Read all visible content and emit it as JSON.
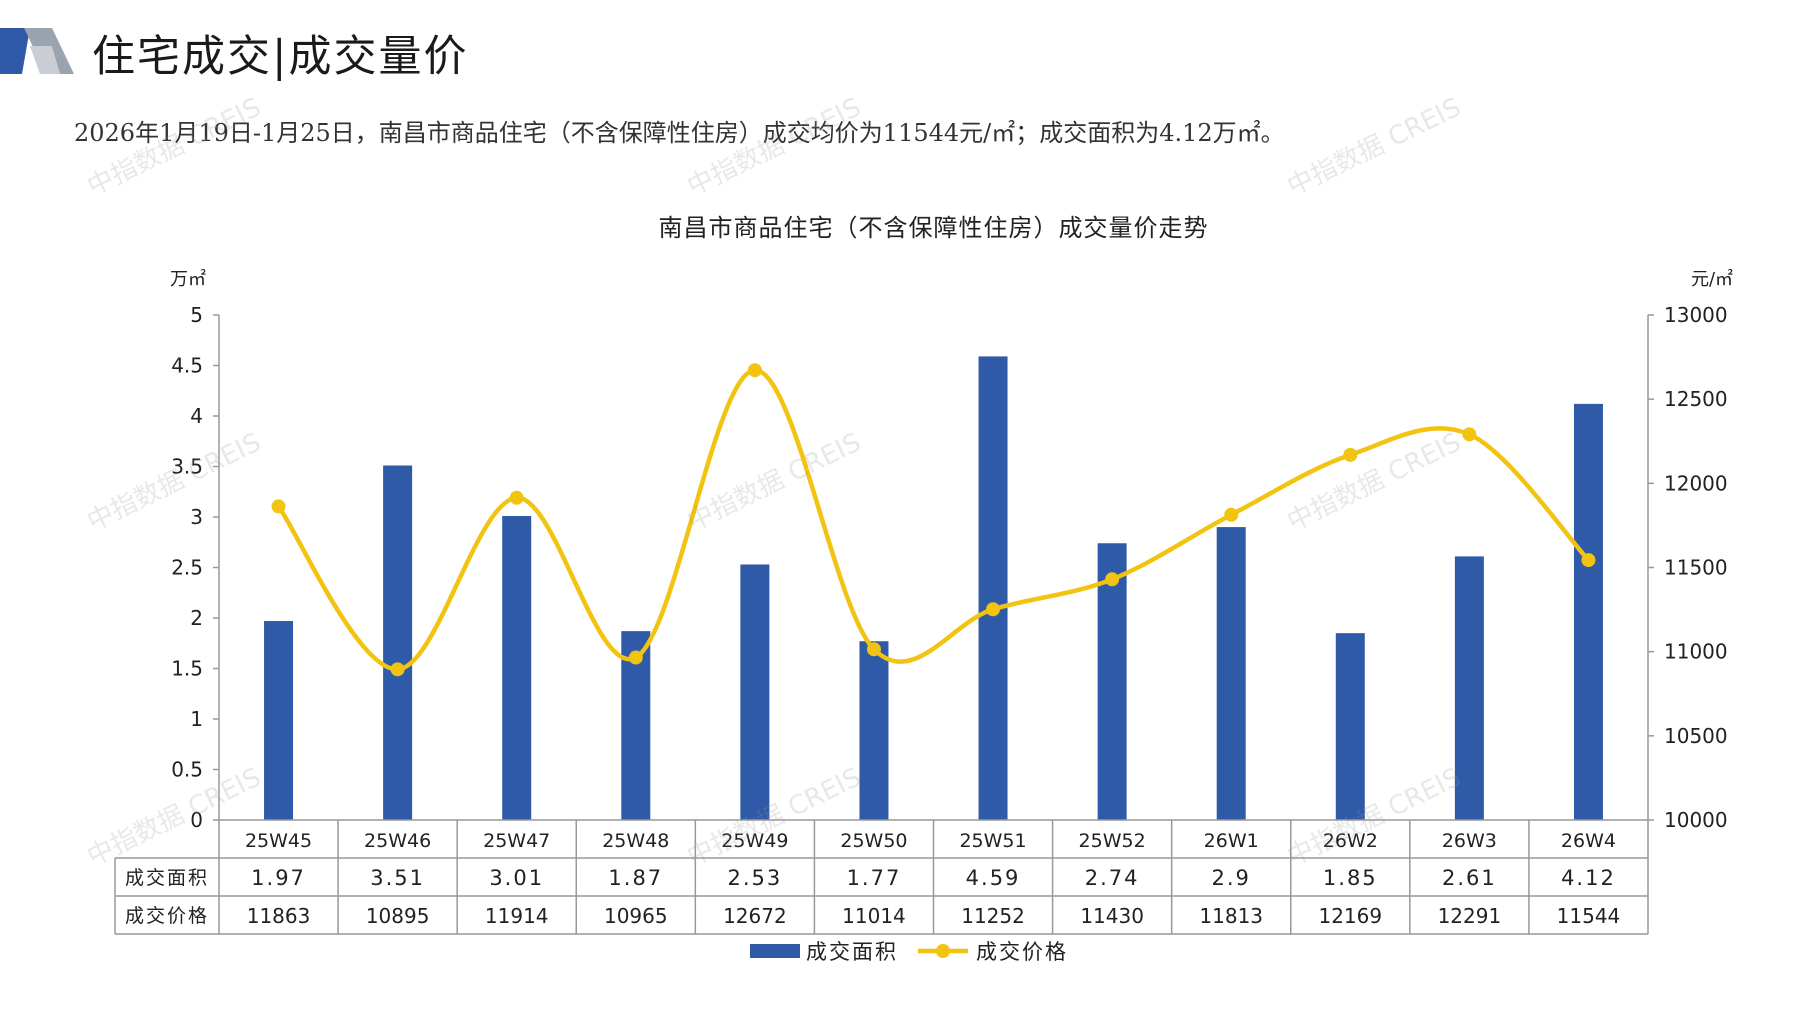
{
  "header": {
    "title": "住宅成交|成交量价",
    "summary": "2026年1月19日-1月25日，南昌市商品住宅（不含保障性住房）成交均价为11544元/㎡；成交面积为4.12万㎡。"
  },
  "watermark_text": "中指数据 CREIS",
  "colors": {
    "bar": "#2E5AA8",
    "line": "#F2C311",
    "axis": "#999999",
    "text": "#222222"
  },
  "chart_data": {
    "type": "bar",
    "title": "南昌市商品住宅（不含保障性住房）成交量价走势",
    "categories": [
      "25W45",
      "25W46",
      "25W47",
      "25W48",
      "25W49",
      "25W50",
      "25W51",
      "25W52",
      "26W1",
      "26W2",
      "26W3",
      "26W4"
    ],
    "y_left": {
      "unit": "万㎡",
      "min": 0,
      "max": 5,
      "ticks": [
        "0",
        "0.5",
        "1",
        "1.5",
        "2",
        "2.5",
        "3",
        "3.5",
        "4",
        "4.5",
        "5"
      ]
    },
    "y_right": {
      "unit": "元/㎡",
      "min": 10000,
      "max": 13000,
      "ticks": [
        "10000",
        "10500",
        "11000",
        "11500",
        "12000",
        "12500",
        "13000"
      ]
    },
    "series": [
      {
        "name": "成交面积",
        "type": "bar",
        "axis": "left",
        "values": [
          1.97,
          3.51,
          3.01,
          1.87,
          2.53,
          1.77,
          4.59,
          2.74,
          2.9,
          1.85,
          2.61,
          4.12
        ],
        "labels": [
          "1.97",
          "3.51",
          "3.01",
          "1.87",
          "2.53",
          "1.77",
          "4.59",
          "2.74",
          "2.9",
          "1.85",
          "2.61",
          "4.12"
        ]
      },
      {
        "name": "成交价格",
        "type": "line",
        "smooth": true,
        "axis": "right",
        "values": [
          11863,
          10895,
          11914,
          10965,
          12672,
          11014,
          11252,
          11430,
          11813,
          12169,
          12291,
          11544
        ],
        "labels": [
          "11863",
          "10895",
          "11914",
          "10965",
          "12672",
          "11014",
          "11252",
          "11430",
          "11813",
          "12169",
          "12291",
          "11544"
        ]
      }
    ],
    "data_table": true,
    "legend": "bottom-center",
    "grid": false
  }
}
